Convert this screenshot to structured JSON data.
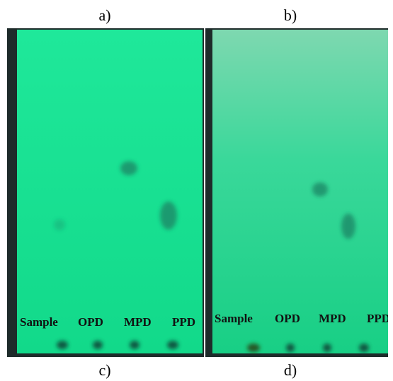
{
  "figure": {
    "top_labels": [
      "a)",
      "b)"
    ],
    "bottom_labels": [
      "c)",
      "d)"
    ],
    "plates": [
      {
        "lanes": [
          "Sample",
          "OPD",
          "MPD",
          "PPD"
        ]
      },
      {
        "lanes": [
          "Sample",
          "OPD",
          "MPD",
          "PPD"
        ]
      }
    ]
  }
}
